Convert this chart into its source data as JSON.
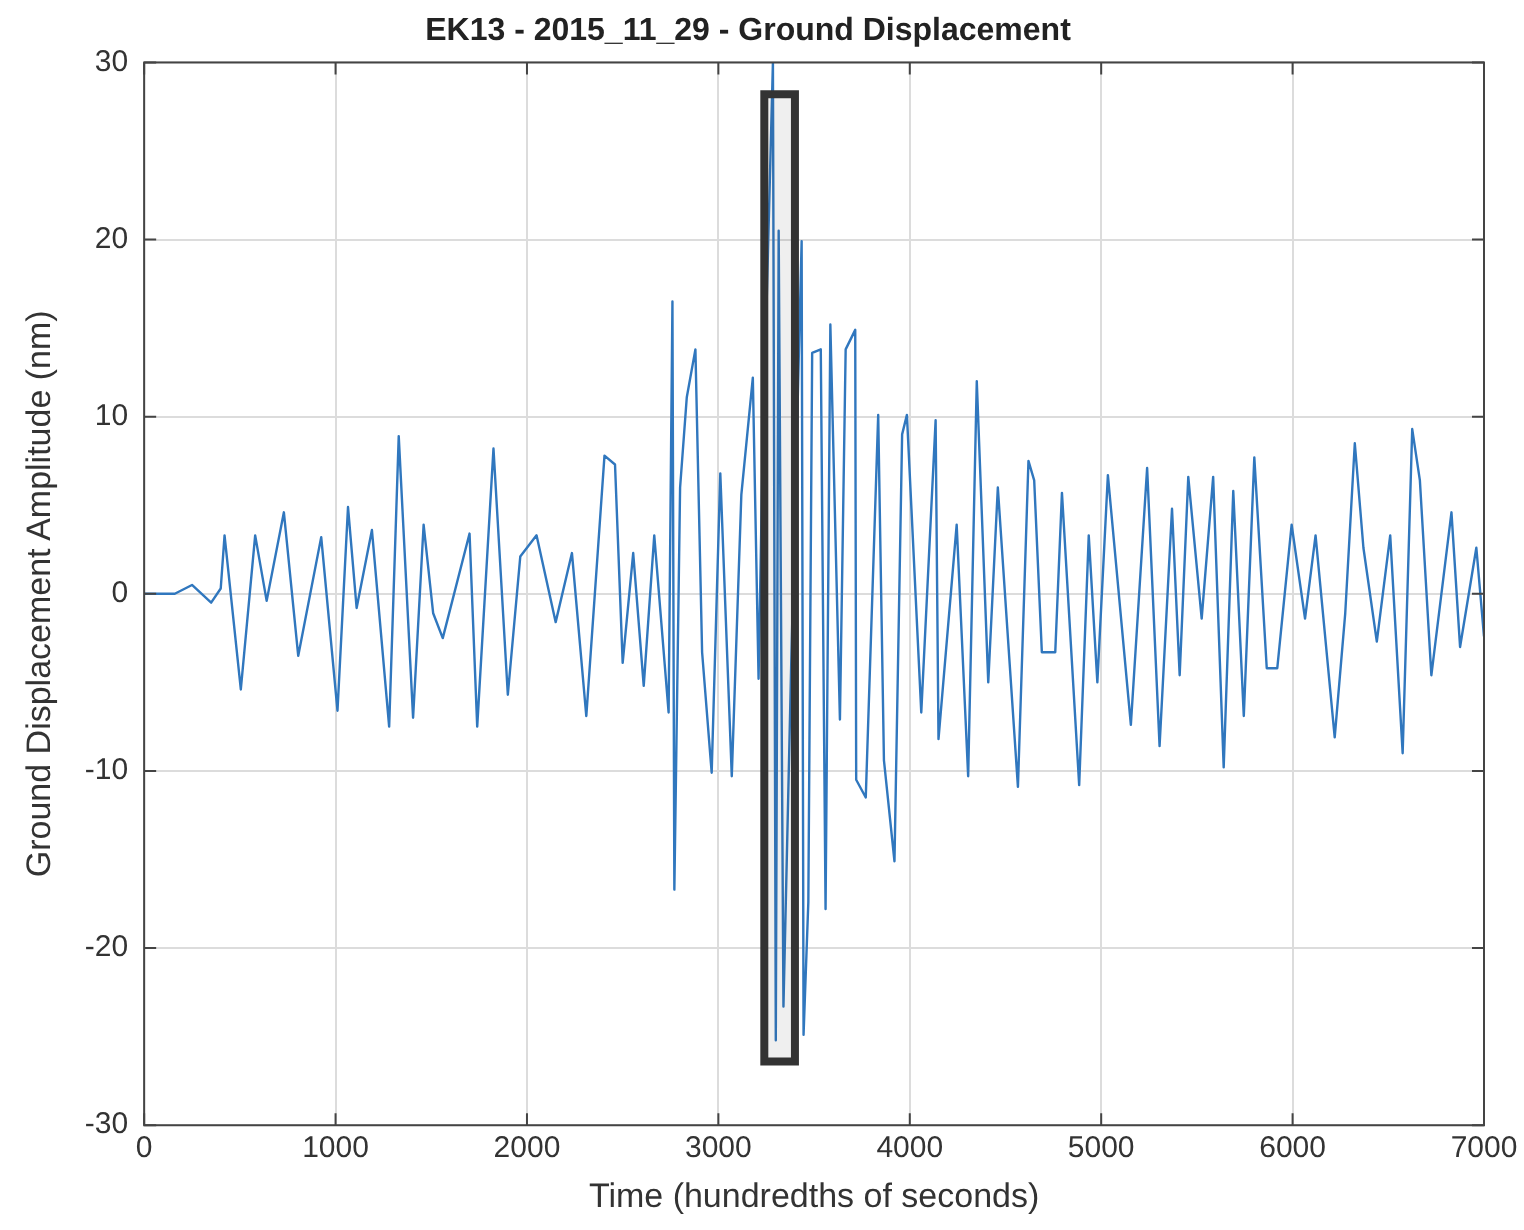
{
  "chart_data": {
    "type": "line",
    "title": "EK13 - 2015_11_29 - Ground Displacement",
    "xlabel": "Time (hundredths of seconds)",
    "ylabel": "Ground Displacement Amplitude (nm)",
    "x": [
      0,
      160,
      250,
      350,
      400,
      420,
      505,
      580,
      640,
      730,
      805,
      925,
      1010,
      1065,
      1110,
      1190,
      1280,
      1330,
      1405,
      1460,
      1510,
      1560,
      1700,
      1740,
      1825,
      1900,
      1965,
      2050,
      2150,
      2235,
      2310,
      2405,
      2460,
      2500,
      2555,
      2610,
      2665,
      2740,
      2760,
      2770,
      2800,
      2835,
      2880,
      2915,
      2965,
      3010,
      3070,
      3120,
      3180,
      3210,
      3230,
      3285,
      3300,
      3315,
      3340,
      3380,
      3435,
      3445,
      3470,
      3490,
      3535,
      3560,
      3585,
      3635,
      3665,
      3715,
      3720,
      3770,
      3835,
      3865,
      3920,
      3960,
      3985,
      4060,
      4135,
      4150,
      4245,
      4305,
      4350,
      4410,
      4460,
      4565,
      4620,
      4650,
      4690,
      4760,
      4795,
      4885,
      4935,
      4980,
      5035,
      5155,
      5240,
      5305,
      5370,
      5410,
      5455,
      5525,
      5585,
      5640,
      5690,
      5745,
      5800,
      5865,
      5920,
      5995,
      6065,
      6120,
      6220,
      6275,
      6325,
      6370,
      6440,
      6510,
      6575,
      6625,
      6665,
      6725,
      6830,
      6875,
      6960,
      7000
    ],
    "series": [
      {
        "color": "#3077be",
        "values": [
          0,
          0,
          0.5,
          -0.5,
          0.3,
          3.3,
          -5.4,
          3.3,
          -0.4,
          4.6,
          -3.5,
          3.2,
          -6.6,
          4.9,
          -0.8,
          3.6,
          -7.5,
          8.9,
          -7.0,
          3.9,
          -1.1,
          -2.5,
          3.4,
          -7.5,
          8.2,
          -5.7,
          2.1,
          3.3,
          -1.6,
          2.3,
          -6.9,
          7.8,
          7.3,
          -3.9,
          2.3,
          -5.2,
          3.3,
          -6.7,
          16.5,
          -16.7,
          6.0,
          11.1,
          13.8,
          -3.3,
          -10.1,
          6.8,
          -10.3,
          5.6,
          12.2,
          -4.8,
          7.3,
          30,
          -25.2,
          20.5,
          -23.3,
          -4.2,
          19.9,
          -24.9,
          -17.4,
          13.6,
          13.8,
          -17.8,
          15.2,
          -7.1,
          13.8,
          14.9,
          -10.5,
          -11.5,
          10.1,
          -9.4,
          -15.1,
          9.0,
          10.1,
          -6.7,
          9.8,
          -8.2,
          3.9,
          -10.3,
          12.0,
          -5.0,
          6.0,
          -10.9,
          7.5,
          6.4,
          -3.3,
          -3.3,
          5.7,
          -10.8,
          3.3,
          -5.0,
          6.7,
          -7.4,
          7.1,
          -8.6,
          4.8,
          -4.6,
          6.6,
          -1.4,
          6.6,
          -9.8,
          5.8,
          -6.9,
          7.7,
          -4.2,
          -4.2,
          3.9,
          -1.4,
          3.3,
          -8.1,
          -1.1,
          8.5,
          2.6,
          -2.7,
          3.3,
          -9.0,
          9.3,
          6.4,
          -4.6,
          4.6,
          -3.0,
          2.6,
          -2.4
        ]
      }
    ],
    "xlim": [
      0,
      7000
    ],
    "xticks": [
      0,
      1000,
      2000,
      3000,
      4000,
      5000,
      6000,
      7000
    ],
    "ylim": [
      -30,
      30
    ],
    "yticks": [
      -30,
      -20,
      -10,
      0,
      10,
      20,
      30
    ],
    "bands": [
      {
        "axis": "x",
        "from": 3240,
        "to": 3400,
        "color": "#333333"
      }
    ],
    "grid": true,
    "legend": false,
    "marker": "none",
    "line_style": "solid"
  }
}
